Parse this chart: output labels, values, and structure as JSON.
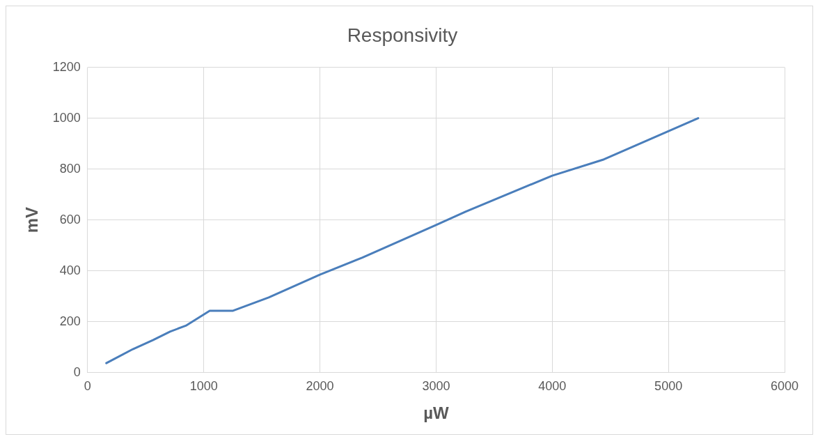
{
  "chart_data": {
    "type": "line",
    "title": "Responsivity",
    "xlabel": "µW",
    "ylabel": "mV",
    "series": [
      {
        "color": "#4a7ebb",
        "x": [
          161,
          390,
          565,
          710,
          845,
          1051,
          1252,
          1559,
          2000,
          2366,
          3000,
          3256,
          4000,
          4445,
          5256
        ],
        "values": [
          37,
          92,
          128,
          161,
          184,
          243,
          243,
          295,
          385,
          452,
          580,
          633,
          774,
          838,
          1000
        ]
      }
    ],
    "xlim": [
      0,
      6000
    ],
    "xticks": [
      0,
      1000,
      2000,
      3000,
      4000,
      5000,
      6000
    ],
    "ylim": [
      0,
      1200
    ],
    "yticks": [
      0,
      200,
      400,
      600,
      800,
      1000,
      1200
    ],
    "grid": true,
    "legend": false,
    "marker": "none",
    "line_style": "solid"
  }
}
